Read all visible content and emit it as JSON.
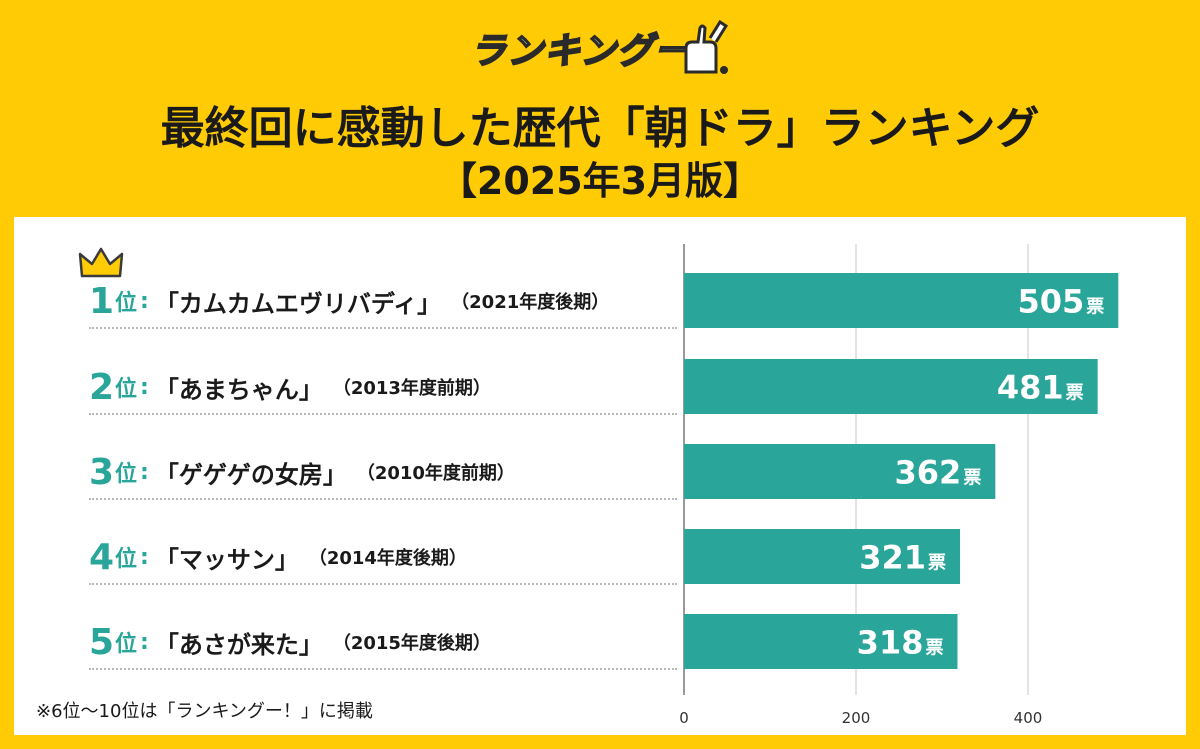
{
  "header": {
    "logo_text": "ランキングー",
    "title": "最終回に感動した歴代「朝ドラ」ランキング",
    "subtitle": "【2025年3月版】"
  },
  "colors": {
    "background": "#FFCB05",
    "bar": "#2AA59A",
    "rank_accent": "#2AA59A",
    "panel": "#FFFFFF"
  },
  "rankings": [
    {
      "rank": "1",
      "suffix": "位",
      "colon": ":",
      "title": "「カムカムエヴリバディ」",
      "period": "（2021年度後期）"
    },
    {
      "rank": "2",
      "suffix": "位",
      "colon": ":",
      "title": "「あまちゃん」",
      "period": "（2013年度前期）"
    },
    {
      "rank": "3",
      "suffix": "位",
      "colon": ":",
      "title": "「ゲゲゲの女房」",
      "period": "（2010年度前期）"
    },
    {
      "rank": "4",
      "suffix": "位",
      "colon": ":",
      "title": "「マッサン」",
      "period": "（2014年度後期）"
    },
    {
      "rank": "5",
      "suffix": "位",
      "colon": ":",
      "title": "「あさが来た」",
      "period": "（2015年度後期）"
    }
  ],
  "chart_data": {
    "type": "bar",
    "orientation": "horizontal",
    "categories": [
      "カムカムエヴリバディ",
      "あまちゃん",
      "ゲゲゲの女房",
      "マッサン",
      "あさが来た"
    ],
    "values": [
      505,
      481,
      362,
      321,
      318
    ],
    "value_unit": "票",
    "xlim": [
      0,
      500
    ],
    "xticks": [
      0,
      200,
      400
    ],
    "grid": true
  },
  "footnote": "※6位～10位は「ランキングー！」に掲載"
}
